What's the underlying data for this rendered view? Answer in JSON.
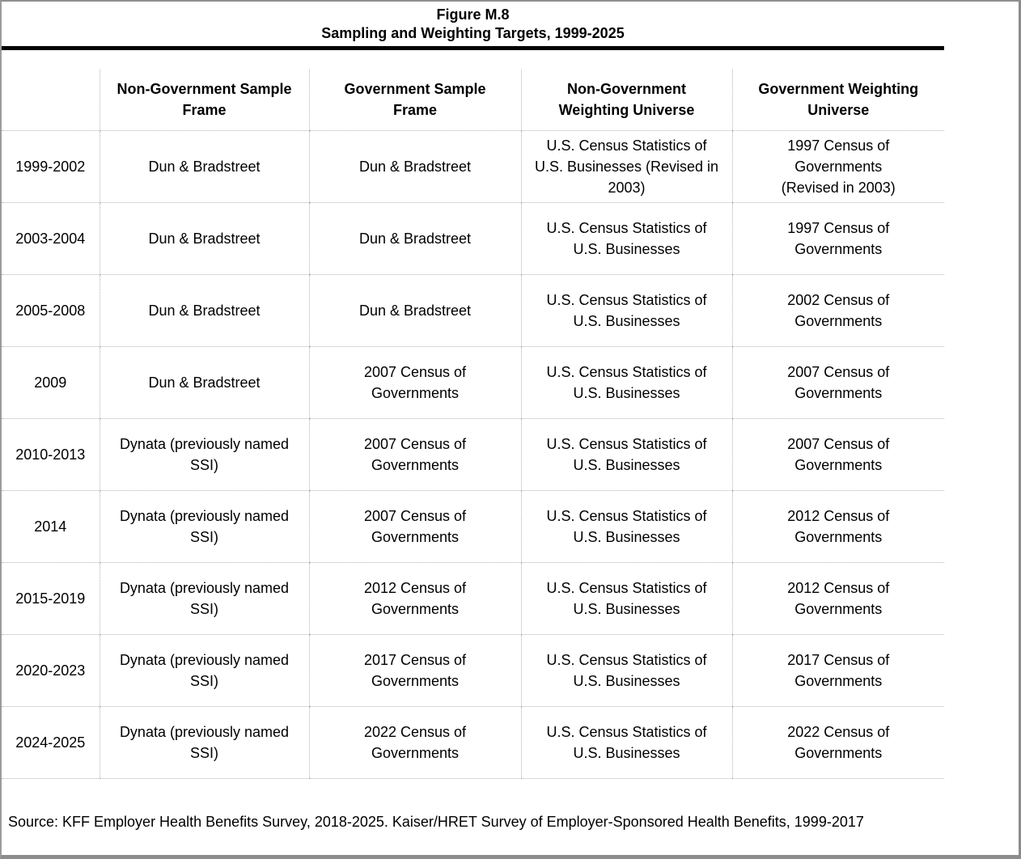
{
  "title": {
    "line1": "Figure M.8",
    "line2": "Sampling and Weighting Targets, 1999-2025"
  },
  "colors": {
    "frame-border": "#8c8c8c",
    "table-border": "#b3b3b3",
    "rule-color": "#000000",
    "text-color": "#000000",
    "page-bg": "#ffffff"
  },
  "table": {
    "headers": {
      "year": "",
      "non_gov_sample_frame": "Non-Government Sample\nFrame",
      "gov_sample_frame": "Government Sample\nFrame",
      "non_gov_weighting_universe": "Non-Government\nWeighting Universe",
      "gov_weighting_universe": "Government Weighting\nUniverse"
    },
    "rows": [
      {
        "year": "1999-2002",
        "non_gov_sample_frame": "Dun & Bradstreet",
        "gov_sample_frame": "Dun & Bradstreet",
        "non_gov_weighting_universe": "U.S. Census Statistics of\nU.S. Businesses (Revised in\n2003)",
        "gov_weighting_universe": "1997 Census of\nGovernments\n(Revised in 2003)"
      },
      {
        "year": "2003-2004",
        "non_gov_sample_frame": "Dun & Bradstreet",
        "gov_sample_frame": "Dun & Bradstreet",
        "non_gov_weighting_universe": "U.S. Census Statistics of\nU.S. Businesses",
        "gov_weighting_universe": "1997 Census of\nGovernments"
      },
      {
        "year": "2005-2008",
        "non_gov_sample_frame": "Dun & Bradstreet",
        "gov_sample_frame": "Dun & Bradstreet",
        "non_gov_weighting_universe": "U.S. Census Statistics of\nU.S. Businesses",
        "gov_weighting_universe": "2002 Census of\nGovernments"
      },
      {
        "year": "2009",
        "non_gov_sample_frame": "Dun & Bradstreet",
        "gov_sample_frame": "2007 Census of\nGovernments",
        "non_gov_weighting_universe": "U.S. Census Statistics of\nU.S. Businesses",
        "gov_weighting_universe": "2007 Census of\nGovernments"
      },
      {
        "year": "2010-2013",
        "non_gov_sample_frame": "Dynata (previously named\nSSI)",
        "gov_sample_frame": "2007 Census of\nGovernments",
        "non_gov_weighting_universe": "U.S. Census Statistics of\nU.S. Businesses",
        "gov_weighting_universe": "2007 Census of\nGovernments"
      },
      {
        "year": "2014",
        "non_gov_sample_frame": "Dynata (previously named\nSSI)",
        "gov_sample_frame": "2007 Census of\nGovernments",
        "non_gov_weighting_universe": "U.S. Census Statistics of\nU.S. Businesses",
        "gov_weighting_universe": "2012 Census of\nGovernments"
      },
      {
        "year": "2015-2019",
        "non_gov_sample_frame": "Dynata (previously named\nSSI)",
        "gov_sample_frame": "2012 Census of\nGovernments",
        "non_gov_weighting_universe": "U.S. Census Statistics of\nU.S. Businesses",
        "gov_weighting_universe": "2012 Census of\nGovernments"
      },
      {
        "year": "2020-2023",
        "non_gov_sample_frame": "Dynata (previously named\nSSI)",
        "gov_sample_frame": "2017 Census of\nGovernments",
        "non_gov_weighting_universe": "U.S. Census Statistics of\nU.S. Businesses",
        "gov_weighting_universe": "2017 Census of\nGovernments"
      },
      {
        "year": "2024-2025",
        "non_gov_sample_frame": "Dynata (previously named\nSSI)",
        "gov_sample_frame": "2022 Census of\nGovernments",
        "non_gov_weighting_universe": "U.S. Census Statistics of\nU.S. Businesses",
        "gov_weighting_universe": "2022 Census of\nGovernments"
      }
    ]
  },
  "source": "Source: KFF Employer Health Benefits Survey, 2018-2025. Kaiser/HRET Survey of Employer-Sponsored Health Benefits, 1999-2017"
}
